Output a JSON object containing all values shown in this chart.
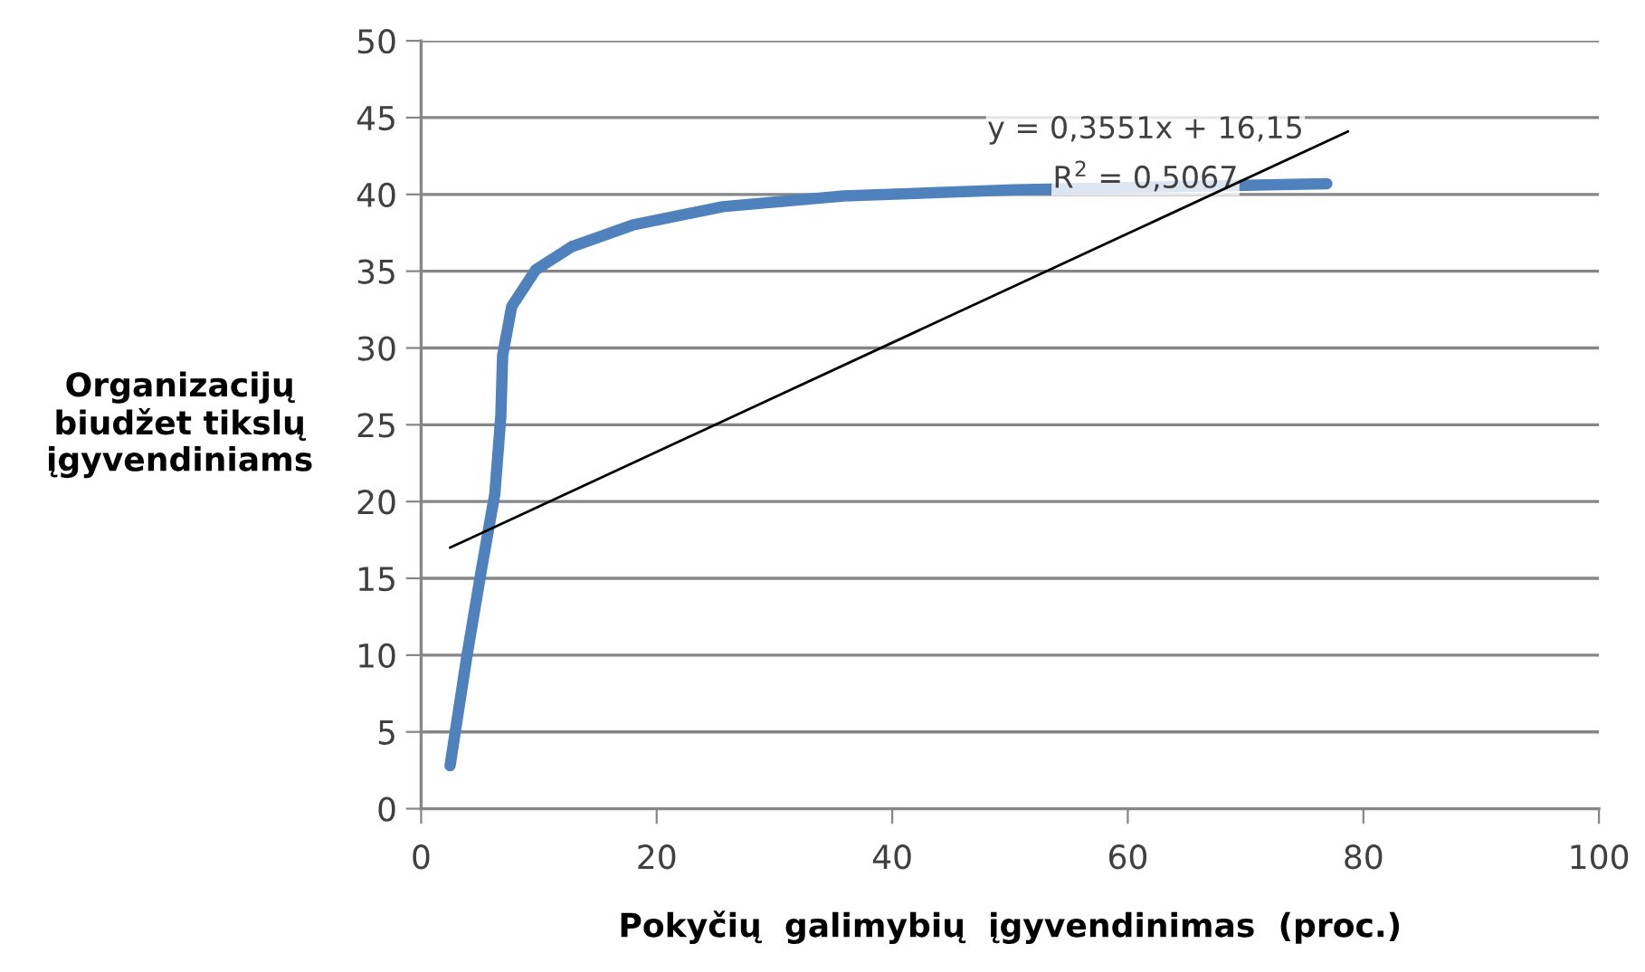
{
  "chart_data": {
    "type": "line",
    "xlabel": "Pokyčių  galimybių  įgyvendinimas  (proc.)",
    "ylabel": "Organizacijų\nbiudžet tikslų\nįgyvendiniams",
    "series": [
      {
        "color": "#4f81bd",
        "x": [
          2.46,
          3.86,
          5.15,
          6.26,
          6.77,
          6.92,
          7.69,
          9.74,
          12.8,
          17.95,
          25.6,
          35.9,
          50.3,
          70.9,
          76.9
        ],
        "values": [
          2.8,
          9.8,
          15.7,
          20.5,
          25.6,
          29.5,
          32.7,
          35.1,
          36.6,
          38.0,
          39.2,
          39.9,
          40.3,
          40.6,
          40.7
        ]
      },
      {
        "color": "#000000",
        "x": [
          2.46,
          78.7
        ],
        "values": [
          17.0,
          44.1
        ]
      }
    ],
    "annotations": [
      "y = 0,3551x + 16,15",
      "R$^{2}$ = 0,5067"
    ],
    "xlim": [
      0,
      100
    ],
    "xticks": [
      0,
      20,
      40,
      60,
      80,
      100
    ],
    "ylim": [
      0,
      50
    ],
    "yticks": [
      0,
      5,
      10,
      15,
      20,
      25,
      30,
      35,
      40,
      45,
      50
    ],
    "grid": "y",
    "marker": "none",
    "line_style": "solid"
  }
}
